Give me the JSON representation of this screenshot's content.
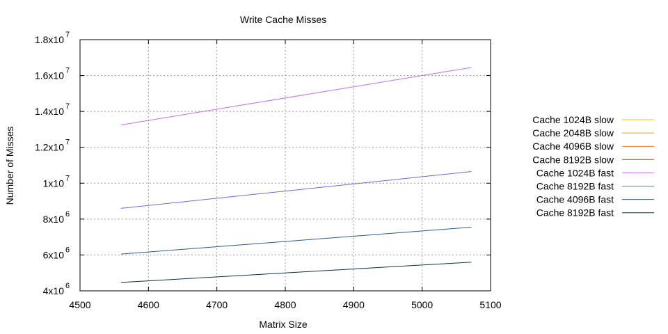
{
  "chart_data": {
    "type": "line",
    "title": "Write Cache Misses",
    "xlabel": "Matrix Size",
    "ylabel": "Number of Misses",
    "xlim": [
      4500,
      5100
    ],
    "ylim": [
      4000000,
      18000000
    ],
    "x_ticks": [
      4500,
      4600,
      4700,
      4800,
      4900,
      5000,
      5100
    ],
    "y_ticks": [
      {
        "value": 4000000,
        "mantissa": "4x10",
        "exp": "6"
      },
      {
        "value": 6000000,
        "mantissa": "6x10",
        "exp": "6"
      },
      {
        "value": 8000000,
        "mantissa": "8x10",
        "exp": "6"
      },
      {
        "value": 10000000,
        "mantissa": "1x10",
        "exp": "7"
      },
      {
        "value": 12000000,
        "mantissa": "1.2x10",
        "exp": "7"
      },
      {
        "value": 14000000,
        "mantissa": "1.4x10",
        "exp": "7"
      },
      {
        "value": 16000000,
        "mantissa": "1.6x10",
        "exp": "7"
      },
      {
        "value": 18000000,
        "mantissa": "1.8x10",
        "exp": "7"
      }
    ],
    "grid": true,
    "legend_position": "right",
    "x": [
      4560,
      5072
    ],
    "series": [
      {
        "name": "Cache 1024B slow",
        "color": "#e6c619",
        "values": [
          null,
          null
        ]
      },
      {
        "name": "Cache 2048B slow",
        "color": "#dca500",
        "values": [
          null,
          null
        ]
      },
      {
        "name": "Cache 4096B slow",
        "color": "#e8781a",
        "values": [
          null,
          null
        ]
      },
      {
        "name": "Cache 8192B slow",
        "color": "#c23a1a",
        "values": [
          null,
          null
        ]
      },
      {
        "name": "Cache 1024B fast",
        "color": "#c46ce6",
        "values": [
          13250000,
          16450000
        ]
      },
      {
        "name": "Cache 8192B fast",
        "color": "#6a6ad2",
        "values": [
          8600000,
          10650000
        ]
      },
      {
        "name": "Cache 4096B fast",
        "color": "#2a5a8a",
        "values": [
          6050000,
          7550000
        ]
      },
      {
        "name": "Cache 8192B fast",
        "color": "#0b2e4a",
        "values": [
          4470000,
          5600000
        ]
      }
    ]
  }
}
